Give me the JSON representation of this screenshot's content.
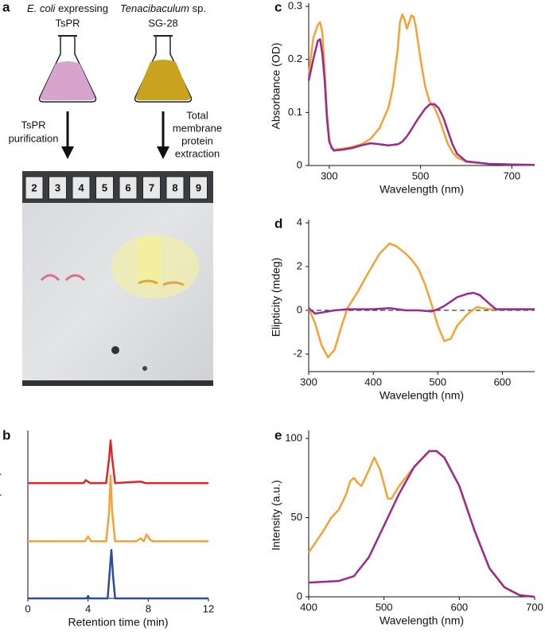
{
  "panel_a": {
    "label": "a",
    "left_flask": {
      "title_italic": "E. coli",
      "title_rest": " expressing",
      "subtitle": "TsPR",
      "step": [
        "TsPR",
        "purification"
      ]
    },
    "right_flask": {
      "title_italic": "Tenacibaculum",
      "title_rest": " sp.",
      "subtitle": "SG-28",
      "step": [
        "Total",
        "membrane",
        "protein",
        "extraction"
      ]
    },
    "gel": {
      "lanes": [
        2,
        3,
        4,
        5,
        6,
        7,
        8,
        9
      ]
    }
  },
  "chart_data": [
    {
      "type": "line",
      "panel_label": "b",
      "xlabel": "Retention time (min)",
      "ylabel": "Absorbance (a.u.)",
      "xlim": [
        0,
        12
      ],
      "xticks": [
        0,
        4,
        8,
        12
      ],
      "ylim": [
        0,
        3.4
      ],
      "series": [
        {
          "color": "#e0242b",
          "x": [
            0,
            3.7,
            3.85,
            4.0,
            4.15,
            5.2,
            5.4,
            5.5,
            5.6,
            5.8,
            7.5,
            7.8,
            12
          ],
          "values": [
            2.38,
            2.38,
            2.44,
            2.41,
            2.38,
            2.38,
            2.9,
            3.26,
            2.9,
            2.38,
            2.41,
            2.38,
            2.38
          ]
        },
        {
          "color": "#f4a236",
          "x": [
            0,
            3.8,
            4.0,
            4.2,
            5.2,
            5.4,
            5.5,
            5.6,
            5.8,
            7.2,
            7.5,
            7.7,
            7.9,
            8.1,
            8.3,
            12
          ],
          "values": [
            1.18,
            1.18,
            1.28,
            1.18,
            1.18,
            1.8,
            2.54,
            1.8,
            1.18,
            1.18,
            1.24,
            1.18,
            1.32,
            1.22,
            1.18,
            1.18
          ]
        },
        {
          "color": "#2c4c9e",
          "x": [
            0,
            3.9,
            4.0,
            4.1,
            5.3,
            5.45,
            5.55,
            5.65,
            5.8,
            12
          ],
          "values": [
            0,
            0,
            0.05,
            0,
            0,
            0.6,
            1.0,
            0.5,
            0,
            0
          ]
        }
      ]
    },
    {
      "type": "line",
      "panel_label": "c",
      "xlabel": "Wavelength (nm)",
      "ylabel": "Absorbance (OD)",
      "xlim": [
        255,
        750
      ],
      "xticks": [
        300,
        500,
        700
      ],
      "ylim": [
        0,
        0.3
      ],
      "yticks": [
        0,
        0.1,
        0.2,
        0.3
      ],
      "x": [
        255,
        265,
        275,
        280,
        285,
        290,
        295,
        300,
        305,
        310,
        330,
        350,
        370,
        390,
        410,
        430,
        440,
        450,
        455,
        460,
        465,
        470,
        475,
        480,
        485,
        490,
        500,
        510,
        520,
        530,
        540,
        550,
        560,
        570,
        580,
        600,
        650,
        700,
        750
      ],
      "series": [
        {
          "color": "#f4a236",
          "values": [
            0.17,
            0.24,
            0.265,
            0.27,
            0.25,
            0.18,
            0.1,
            0.05,
            0.032,
            0.03,
            0.032,
            0.035,
            0.04,
            0.05,
            0.07,
            0.11,
            0.15,
            0.22,
            0.27,
            0.285,
            0.275,
            0.258,
            0.27,
            0.283,
            0.28,
            0.26,
            0.2,
            0.15,
            0.12,
            0.11,
            0.09,
            0.065,
            0.04,
            0.025,
            0.015,
            0.007,
            0.003,
            0.002,
            0.001
          ]
        },
        {
          "color": "#9a2a90",
          "values": [
            0.16,
            0.2,
            0.235,
            0.238,
            0.21,
            0.16,
            0.09,
            0.045,
            0.035,
            0.028,
            0.03,
            0.033,
            0.038,
            0.042,
            0.04,
            0.038,
            0.039,
            0.04,
            0.042,
            0.045,
            0.05,
            0.055,
            0.061,
            0.068,
            0.075,
            0.082,
            0.095,
            0.107,
            0.115,
            0.116,
            0.108,
            0.09,
            0.065,
            0.04,
            0.022,
            0.008,
            0.003,
            0.002,
            0.001
          ]
        }
      ]
    },
    {
      "type": "line",
      "panel_label": "d",
      "xlabel": "Wavelength (nm)",
      "ylabel": "Elipticity (mdeg)",
      "xlim": [
        300,
        650
      ],
      "xticks": [
        300,
        400,
        500,
        600
      ],
      "ylim": [
        -2.8,
        4
      ],
      "yticks": [
        -2,
        0,
        2,
        4
      ],
      "reference_line": 0,
      "series": [
        {
          "color": "#f4a236",
          "x": [
            300,
            310,
            320,
            330,
            340,
            350,
            360,
            375,
            390,
            400,
            410,
            425,
            435,
            450,
            460,
            470,
            480,
            490,
            500,
            510,
            520,
            530,
            545,
            560,
            580,
            600,
            625,
            650
          ],
          "values": [
            0.1,
            -0.6,
            -1.6,
            -2.15,
            -1.8,
            -0.8,
            0.1,
            0.8,
            1.6,
            2.1,
            2.6,
            3.05,
            2.95,
            2.6,
            2.3,
            1.9,
            1.2,
            0.3,
            -0.7,
            -1.4,
            -1.3,
            -0.7,
            -0.2,
            0.15,
            0.05,
            0.05,
            0.05,
            0.05
          ]
        },
        {
          "color": "#9a2a90",
          "x": [
            300,
            310,
            320,
            340,
            360,
            380,
            400,
            425,
            450,
            470,
            490,
            500,
            510,
            520,
            530,
            545,
            555,
            565,
            580,
            590,
            600,
            625,
            650
          ],
          "values": [
            0.1,
            -0.15,
            -0.1,
            0,
            0.05,
            0.05,
            0.05,
            0.1,
            0,
            0,
            -0.05,
            0.05,
            0.2,
            0.4,
            0.6,
            0.75,
            0.8,
            0.7,
            0.3,
            0.05,
            0.05,
            0.05,
            0.05
          ]
        }
      ]
    },
    {
      "type": "line",
      "panel_label": "e",
      "xlabel": "Wavelength (nm)",
      "ylabel": "Intensity (a.u.)",
      "xlim": [
        400,
        700
      ],
      "xticks": [
        400,
        500,
        600,
        700
      ],
      "ylim": [
        0,
        103
      ],
      "yticks": [
        0,
        50,
        100
      ],
      "series": [
        {
          "color": "#f4a236",
          "x": [
            400,
            410,
            420,
            430,
            440,
            450,
            455,
            460,
            465,
            470,
            480,
            487,
            495,
            505,
            510,
            520,
            540,
            560,
            570,
            580,
            600,
            620,
            640,
            660,
            680,
            700
          ],
          "values": [
            28,
            35,
            42,
            50,
            55,
            65,
            73,
            75,
            72,
            70,
            80,
            88,
            80,
            62,
            62,
            70,
            82,
            92,
            92,
            88,
            70,
            42,
            18,
            6,
            1,
            0
          ]
        },
        {
          "color": "#9a2a90",
          "x": [
            400,
            440,
            460,
            480,
            500,
            520,
            540,
            560,
            570,
            580,
            600,
            620,
            640,
            660,
            680,
            700
          ],
          "values": [
            9,
            10,
            13,
            25,
            45,
            65,
            82,
            92,
            92,
            88,
            70,
            42,
            18,
            6,
            1,
            0
          ]
        }
      ]
    }
  ]
}
